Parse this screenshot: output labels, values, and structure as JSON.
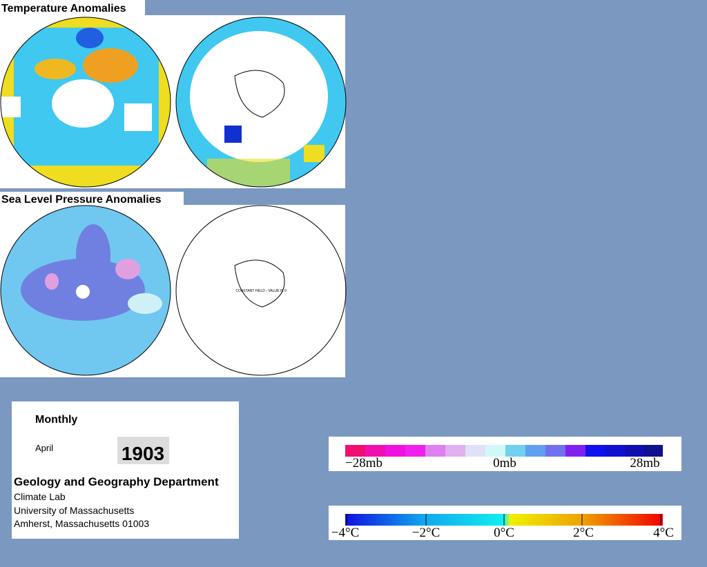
{
  "sections": [
    {
      "title": "Temperature Anomalies"
    },
    {
      "title": "Sea Level Pressure Anomalies",
      "note": "CONSTANT FIELD - VALUE IS 0"
    }
  ],
  "info": {
    "period": "Monthly",
    "month": "April",
    "year": "1903",
    "department": "Geology and Geography Department",
    "lines": [
      "Climate Lab",
      "University of Massachusetts",
      "Amherst, Massachusetts 01003"
    ]
  },
  "legends": {
    "pressure": [
      "−28mb",
      "0mb",
      "28mb"
    ],
    "temperature": [
      "−4°C",
      "−2°C",
      "0°C",
      "2°C",
      "4°C"
    ]
  }
}
